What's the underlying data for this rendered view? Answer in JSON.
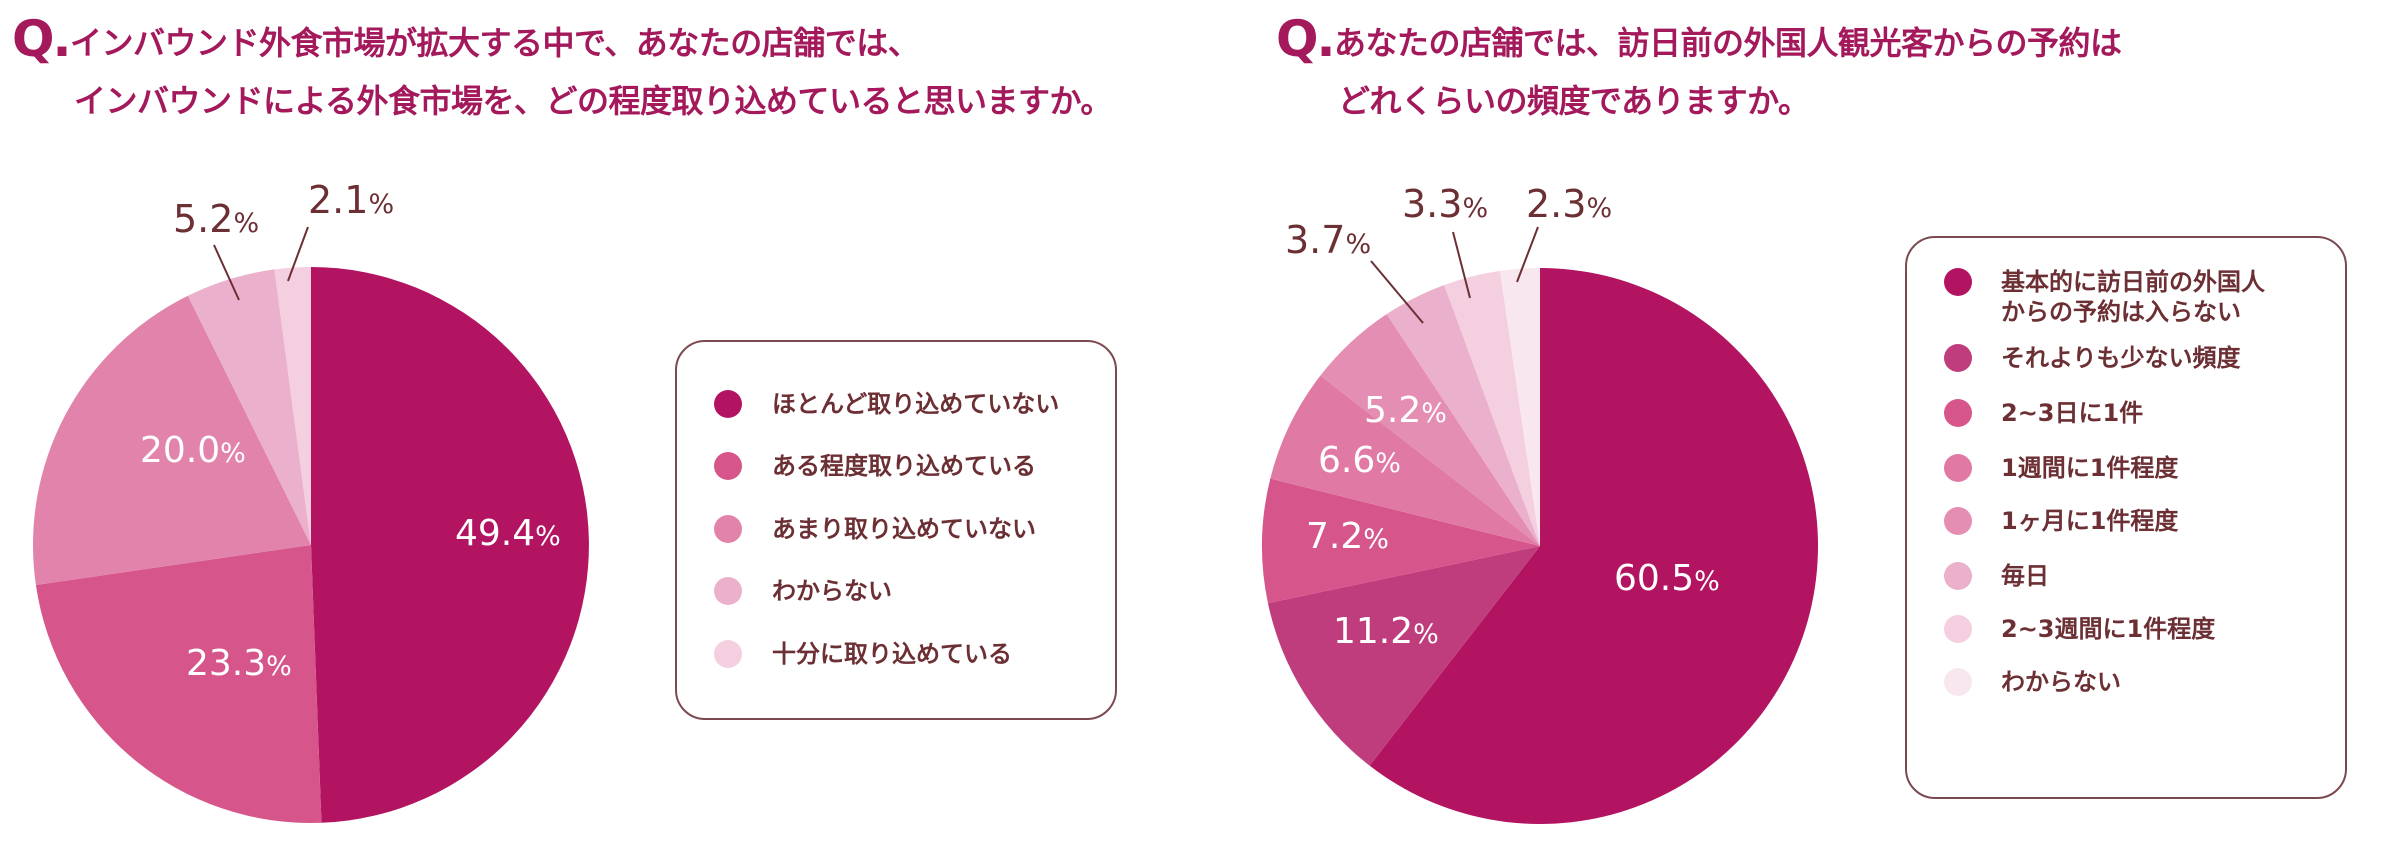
{
  "titles": [
    {
      "q": "Q.",
      "line1": "インバウンド外食市場が拡大する中で、あなたの店舗では、",
      "line2": "インバウンドによる外食市場を、どの程度取り込めていると思いますか。"
    },
    {
      "q": "Q.",
      "line1": "あなたの店舗では、訪日前の外国人観光客からの予約は",
      "line2": "どれくらいの頻度でありますか。"
    }
  ],
  "colors": {
    "title": "#a3195b",
    "text": "#6b2f34",
    "border": "#7a4a50"
  },
  "legends": [
    {
      "items": [
        {
          "label": "ほとんど取り込めていない",
          "color": "#b31462"
        },
        {
          "label": "ある程度取り込めている",
          "color": "#d6568c"
        },
        {
          "label": "あまり取り込めていない",
          "color": "#e283ab"
        },
        {
          "label": "わからない",
          "color": "#ebb0cb"
        },
        {
          "label": "十分に取り込めている",
          "color": "#f4cfe0"
        }
      ]
    },
    {
      "items": [
        {
          "label": "基本的に訪日前の外国人\nからの予約は入らない",
          "color": "#b31462"
        },
        {
          "label": "それよりも少ない頻度",
          "color": "#c03d7d"
        },
        {
          "label": "2~3日に1件",
          "color": "#d6568c"
        },
        {
          "label": "1週間に1件程度",
          "color": "#e07aa5"
        },
        {
          "label": "1ヶ月に1件程度",
          "color": "#e58eb3"
        },
        {
          "label": "毎日",
          "color": "#ebb0cb"
        },
        {
          "label": "2~3週間に1件程度",
          "color": "#f3cfe0"
        },
        {
          "label": "わからない",
          "color": "#f9e7ef"
        }
      ]
    }
  ],
  "chart_data": [
    {
      "type": "pie",
      "title": "インバウンド外食市場が拡大する中で、あなたの店舗では、インバウンドによる外食市場を、どの程度取り込めていると思いますか。",
      "categories": [
        "ほとんど取り込めていない",
        "ある程度取り込めている",
        "あまり取り込めていない",
        "わからない",
        "十分に取り込めている"
      ],
      "values": [
        49.4,
        23.3,
        20.0,
        5.2,
        2.1
      ],
      "unit": "%",
      "start_angle": "12 o'clock, clockwise",
      "legend_position": "right",
      "labels": [
        {
          "text": "49.4",
          "inside": true
        },
        {
          "text": "23.3",
          "inside": true
        },
        {
          "text": "20.0",
          "inside": true
        },
        {
          "text": "5.2",
          "inside": false
        },
        {
          "text": "2.1",
          "inside": false
        }
      ]
    },
    {
      "type": "pie",
      "title": "あなたの店舗では、訪日前の外国人観光客からの予約はどれくらいの頻度でありますか。",
      "categories": [
        "基本的に訪日前の外国人からの予約は入らない",
        "それよりも少ない頻度",
        "2~3日に1件",
        "1週間に1件程度",
        "1ヶ月に1件程度",
        "毎日",
        "2~3週間に1件程度",
        "わからない"
      ],
      "values": [
        60.5,
        11.2,
        7.2,
        6.6,
        5.2,
        3.7,
        3.3,
        2.3
      ],
      "unit": "%",
      "start_angle": "12 o'clock, clockwise",
      "legend_position": "right",
      "labels": [
        {
          "text": "60.5",
          "inside": true
        },
        {
          "text": "11.2",
          "inside": true
        },
        {
          "text": "7.2",
          "inside": true
        },
        {
          "text": "6.6",
          "inside": true
        },
        {
          "text": "5.2",
          "inside": true
        },
        {
          "text": "3.7",
          "inside": false
        },
        {
          "text": "3.3",
          "inside": false
        },
        {
          "text": "2.3",
          "inside": false
        }
      ]
    }
  ]
}
